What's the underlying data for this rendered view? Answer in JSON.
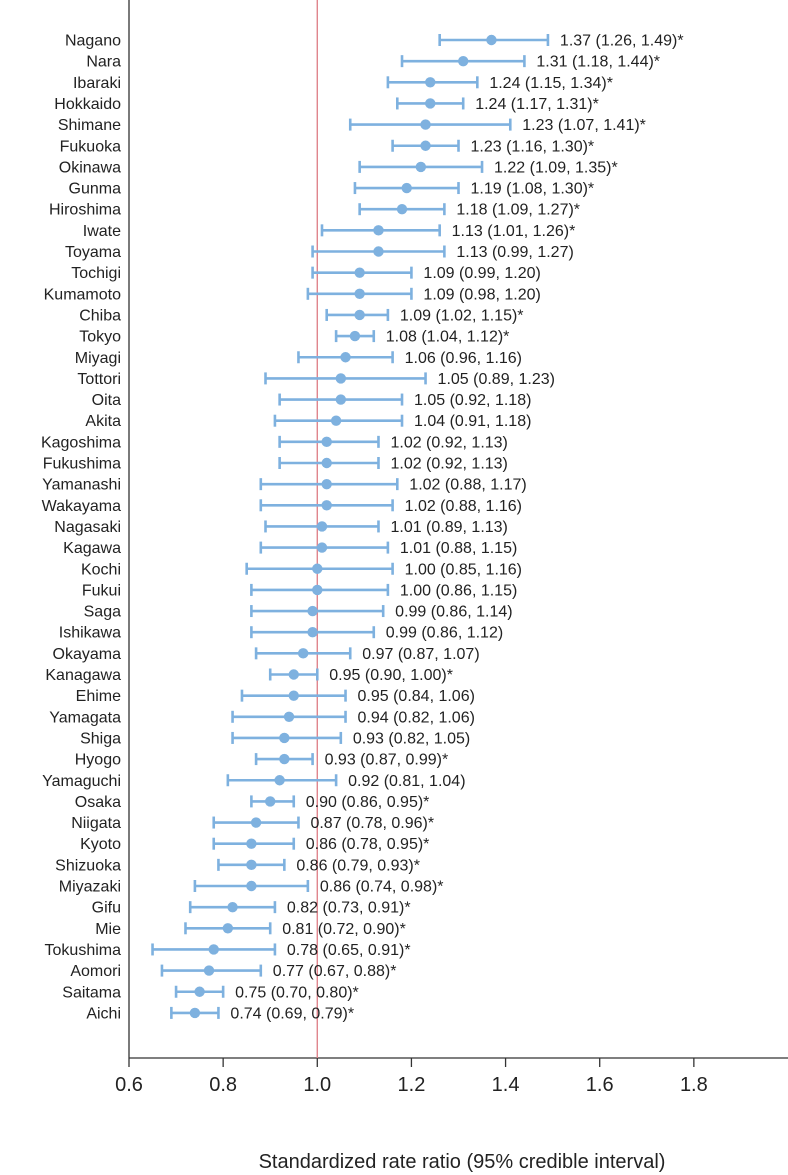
{
  "chart_data": {
    "type": "forest",
    "xlabel": "Standardized rate ratio (95% credible interval)",
    "xlim": [
      0.6,
      2.0
    ],
    "xticks": [
      0.6,
      0.8,
      1.0,
      1.2,
      1.4,
      1.6,
      1.8
    ],
    "xtick_labels": [
      "0.6",
      "0.8",
      "1.0",
      "1.2",
      "1.4",
      "1.6",
      "1.8"
    ],
    "reference_line": 1.0,
    "colors": {
      "marker": "#7eb1df",
      "reference": "#e0848c",
      "axis": "#333333",
      "text": "#222222"
    },
    "rows": [
      {
        "name": "Nagano",
        "est": 1.37,
        "lo": 1.26,
        "hi": 1.49,
        "label": "1.37 (1.26, 1.49)*"
      },
      {
        "name": "Nara",
        "est": 1.31,
        "lo": 1.18,
        "hi": 1.44,
        "label": "1.31 (1.18, 1.44)*"
      },
      {
        "name": "Ibaraki",
        "est": 1.24,
        "lo": 1.15,
        "hi": 1.34,
        "label": "1.24 (1.15, 1.34)*"
      },
      {
        "name": "Hokkaido",
        "est": 1.24,
        "lo": 1.17,
        "hi": 1.31,
        "label": "1.24 (1.17, 1.31)*"
      },
      {
        "name": "Shimane",
        "est": 1.23,
        "lo": 1.07,
        "hi": 1.41,
        "label": "1.23 (1.07, 1.41)*"
      },
      {
        "name": "Fukuoka",
        "est": 1.23,
        "lo": 1.16,
        "hi": 1.3,
        "label": "1.23 (1.16, 1.30)*"
      },
      {
        "name": "Okinawa",
        "est": 1.22,
        "lo": 1.09,
        "hi": 1.35,
        "label": "1.22 (1.09, 1.35)*"
      },
      {
        "name": "Gunma",
        "est": 1.19,
        "lo": 1.08,
        "hi": 1.3,
        "label": "1.19 (1.08, 1.30)*"
      },
      {
        "name": "Hiroshima",
        "est": 1.18,
        "lo": 1.09,
        "hi": 1.27,
        "label": "1.18 (1.09, 1.27)*"
      },
      {
        "name": "Iwate",
        "est": 1.13,
        "lo": 1.01,
        "hi": 1.26,
        "label": "1.13 (1.01, 1.26)*"
      },
      {
        "name": "Toyama",
        "est": 1.13,
        "lo": 0.99,
        "hi": 1.27,
        "label": "1.13 (0.99, 1.27)"
      },
      {
        "name": "Tochigi",
        "est": 1.09,
        "lo": 0.99,
        "hi": 1.2,
        "label": "1.09 (0.99, 1.20)"
      },
      {
        "name": "Kumamoto",
        "est": 1.09,
        "lo": 0.98,
        "hi": 1.2,
        "label": "1.09 (0.98, 1.20)"
      },
      {
        "name": "Chiba",
        "est": 1.09,
        "lo": 1.02,
        "hi": 1.15,
        "label": "1.09 (1.02, 1.15)*"
      },
      {
        "name": "Tokyo",
        "est": 1.08,
        "lo": 1.04,
        "hi": 1.12,
        "label": "1.08 (1.04, 1.12)*"
      },
      {
        "name": "Miyagi",
        "est": 1.06,
        "lo": 0.96,
        "hi": 1.16,
        "label": "1.06 (0.96, 1.16)"
      },
      {
        "name": "Tottori",
        "est": 1.05,
        "lo": 0.89,
        "hi": 1.23,
        "label": "1.05 (0.89, 1.23)"
      },
      {
        "name": "Oita",
        "est": 1.05,
        "lo": 0.92,
        "hi": 1.18,
        "label": "1.05 (0.92, 1.18)"
      },
      {
        "name": "Akita",
        "est": 1.04,
        "lo": 0.91,
        "hi": 1.18,
        "label": "1.04 (0.91, 1.18)"
      },
      {
        "name": "Kagoshima",
        "est": 1.02,
        "lo": 0.92,
        "hi": 1.13,
        "label": "1.02 (0.92, 1.13)"
      },
      {
        "name": "Fukushima",
        "est": 1.02,
        "lo": 0.92,
        "hi": 1.13,
        "label": "1.02 (0.92, 1.13)"
      },
      {
        "name": "Yamanashi",
        "est": 1.02,
        "lo": 0.88,
        "hi": 1.17,
        "label": "1.02 (0.88, 1.17)"
      },
      {
        "name": "Wakayama",
        "est": 1.02,
        "lo": 0.88,
        "hi": 1.16,
        "label": "1.02 (0.88, 1.16)"
      },
      {
        "name": "Nagasaki",
        "est": 1.01,
        "lo": 0.89,
        "hi": 1.13,
        "label": "1.01 (0.89, 1.13)"
      },
      {
        "name": "Kagawa",
        "est": 1.01,
        "lo": 0.88,
        "hi": 1.15,
        "label": "1.01 (0.88, 1.15)"
      },
      {
        "name": "Kochi",
        "est": 1.0,
        "lo": 0.85,
        "hi": 1.16,
        "label": "1.00 (0.85, 1.16)"
      },
      {
        "name": "Fukui",
        "est": 1.0,
        "lo": 0.86,
        "hi": 1.15,
        "label": "1.00 (0.86, 1.15)"
      },
      {
        "name": "Saga",
        "est": 0.99,
        "lo": 0.86,
        "hi": 1.14,
        "label": "0.99 (0.86, 1.14)"
      },
      {
        "name": "Ishikawa",
        "est": 0.99,
        "lo": 0.86,
        "hi": 1.12,
        "label": "0.99 (0.86, 1.12)"
      },
      {
        "name": "Okayama",
        "est": 0.97,
        "lo": 0.87,
        "hi": 1.07,
        "label": "0.97 (0.87, 1.07)"
      },
      {
        "name": "Kanagawa",
        "est": 0.95,
        "lo": 0.9,
        "hi": 1.0,
        "label": "0.95 (0.90, 1.00)*"
      },
      {
        "name": "Ehime",
        "est": 0.95,
        "lo": 0.84,
        "hi": 1.06,
        "label": "0.95 (0.84, 1.06)"
      },
      {
        "name": "Yamagata",
        "est": 0.94,
        "lo": 0.82,
        "hi": 1.06,
        "label": "0.94 (0.82, 1.06)"
      },
      {
        "name": "Shiga",
        "est": 0.93,
        "lo": 0.82,
        "hi": 1.05,
        "label": "0.93 (0.82, 1.05)"
      },
      {
        "name": "Hyogo",
        "est": 0.93,
        "lo": 0.87,
        "hi": 0.99,
        "label": "0.93 (0.87, 0.99)*"
      },
      {
        "name": "Yamaguchi",
        "est": 0.92,
        "lo": 0.81,
        "hi": 1.04,
        "label": "0.92 (0.81, 1.04)"
      },
      {
        "name": "Osaka",
        "est": 0.9,
        "lo": 0.86,
        "hi": 0.95,
        "label": "0.90 (0.86, 0.95)*"
      },
      {
        "name": "Niigata",
        "est": 0.87,
        "lo": 0.78,
        "hi": 0.96,
        "label": "0.87 (0.78, 0.96)*"
      },
      {
        "name": "Kyoto",
        "est": 0.86,
        "lo": 0.78,
        "hi": 0.95,
        "label": "0.86 (0.78, 0.95)*"
      },
      {
        "name": "Shizuoka",
        "est": 0.86,
        "lo": 0.79,
        "hi": 0.93,
        "label": "0.86 (0.79, 0.93)*"
      },
      {
        "name": "Miyazaki",
        "est": 0.86,
        "lo": 0.74,
        "hi": 0.98,
        "label": "0.86 (0.74, 0.98)*"
      },
      {
        "name": "Gifu",
        "est": 0.82,
        "lo": 0.73,
        "hi": 0.91,
        "label": "0.82 (0.73, 0.91)*"
      },
      {
        "name": "Mie",
        "est": 0.81,
        "lo": 0.72,
        "hi": 0.9,
        "label": "0.81 (0.72, 0.90)*"
      },
      {
        "name": "Tokushima",
        "est": 0.78,
        "lo": 0.65,
        "hi": 0.91,
        "label": "0.78 (0.65, 0.91)*"
      },
      {
        "name": "Aomori",
        "est": 0.77,
        "lo": 0.67,
        "hi": 0.88,
        "label": "0.77 (0.67, 0.88)*"
      },
      {
        "name": "Saitama",
        "est": 0.75,
        "lo": 0.7,
        "hi": 0.8,
        "label": "0.75 (0.70, 0.80)*"
      },
      {
        "name": "Aichi",
        "est": 0.74,
        "lo": 0.69,
        "hi": 0.79,
        "label": "0.74 (0.69, 0.79)*"
      }
    ]
  }
}
